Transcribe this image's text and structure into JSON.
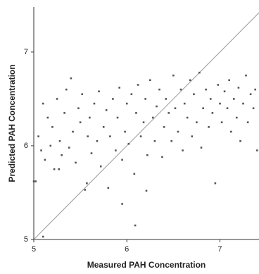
{
  "chart_data": {
    "type": "scatter",
    "xlabel": "Measured PAH Concentration",
    "ylabel": "Predicted PAH Concentration",
    "xlim": [
      5,
      7.42
    ],
    "ylim": [
      5,
      7.48
    ],
    "xticks": [
      5,
      6,
      7
    ],
    "yticks": [
      5,
      6,
      7
    ],
    "color": "#555555",
    "x": [
      5.02,
      5.05,
      5.08,
      5.1,
      5.12,
      5.15,
      5.18,
      5.2,
      5.22,
      5.25,
      5.28,
      5.3,
      5.33,
      5.35,
      5.38,
      5.4,
      5.42,
      5.45,
      5.48,
      5.5,
      5.52,
      5.55,
      5.58,
      5.6,
      5.62,
      5.65,
      5.68,
      5.7,
      5.72,
      5.75,
      5.78,
      5.8,
      5.82,
      5.85,
      5.88,
      5.9,
      5.92,
      5.95,
      5.98,
      6.0,
      6.02,
      6.05,
      6.08,
      6.1,
      6.12,
      6.15,
      6.18,
      6.2,
      6.22,
      6.25,
      6.28,
      6.3,
      6.32,
      6.35,
      6.38,
      6.4,
      6.42,
      6.45,
      6.48,
      6.5,
      6.52,
      6.55,
      6.58,
      6.6,
      6.62,
      6.65,
      6.68,
      6.7,
      6.72,
      6.75,
      6.78,
      6.8,
      6.82,
      6.85,
      6.88,
      6.9,
      6.92,
      6.95,
      6.98,
      7.0,
      7.02,
      7.05,
      7.08,
      7.1,
      7.12,
      7.15,
      7.18,
      7.2,
      7.22,
      7.25,
      7.28,
      7.3,
      7.33,
      7.36,
      7.38,
      7.4,
      5.1,
      5.95,
      6.09,
      6.21,
      5.57,
      5.27,
      5.0
    ],
    "y": [
      5.62,
      6.1,
      5.95,
      6.45,
      5.85,
      6.3,
      6.0,
      6.2,
      5.75,
      6.5,
      6.05,
      5.9,
      6.35,
      6.6,
      5.98,
      6.72,
      6.15,
      5.82,
      6.4,
      6.25,
      6.55,
      5.53,
      6.1,
      6.3,
      5.92,
      6.45,
      6.05,
      6.58,
      5.78,
      6.2,
      6.38,
      5.55,
      6.1,
      6.5,
      5.95,
      6.3,
      6.62,
      5.85,
      6.15,
      6.45,
      6.02,
      6.55,
      5.7,
      6.35,
      6.65,
      6.1,
      6.25,
      6.5,
      5.9,
      6.7,
      6.3,
      6.05,
      6.42,
      6.6,
      5.88,
      6.2,
      6.5,
      6.35,
      6.05,
      6.75,
      6.4,
      6.15,
      6.6,
      5.95,
      6.45,
      6.3,
      6.7,
      6.1,
      6.55,
      6.25,
      6.78,
      5.98,
      6.4,
      6.6,
      6.2,
      6.5,
      6.35,
      5.6,
      6.65,
      6.45,
      6.25,
      6.58,
      6.4,
      6.7,
      6.15,
      6.5,
      6.3,
      6.62,
      6.05,
      6.45,
      6.75,
      6.25,
      6.55,
      6.4,
      6.6,
      5.95,
      5.03,
      5.38,
      5.15,
      5.52,
      5.6,
      5.75,
      5.62
    ]
  }
}
